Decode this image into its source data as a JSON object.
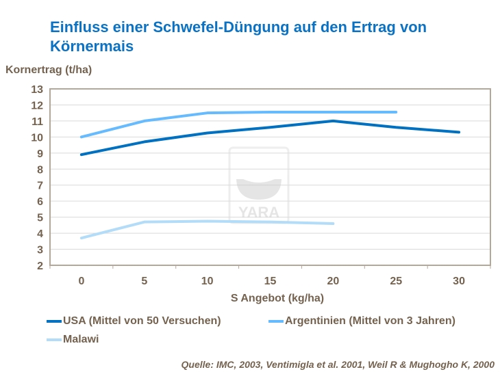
{
  "chart_data": {
    "type": "line",
    "title": "Einfluss einer Schwefel-Düngung auf den Ertrag von Körnermais",
    "ylabel": "Kornertrag (t/ha)",
    "xlabel": "S Angebot (kg/ha)",
    "categories": [
      "0",
      "5",
      "10",
      "15",
      "20",
      "25",
      "30"
    ],
    "ylim": [
      2,
      13
    ],
    "yticks": [
      "2",
      "3",
      "4",
      "5",
      "6",
      "7",
      "8",
      "9",
      "10",
      "11",
      "12",
      "13"
    ],
    "grid": true,
    "legend": "bottom",
    "series": [
      {
        "name": "USA (Mittel von 50 Versuchen)",
        "color": "#0070c0",
        "values": [
          8.9,
          9.7,
          10.25,
          10.6,
          11.0,
          10.6,
          10.3
        ]
      },
      {
        "name": "Argentinien (Mittel von 3 Jahren)",
        "color": "#66bbff",
        "values": [
          10.0,
          11.0,
          11.5,
          11.55,
          11.55,
          11.55,
          null
        ]
      },
      {
        "name": "Malawi",
        "color": "#b3dcf8",
        "values": [
          3.7,
          4.7,
          4.75,
          4.7,
          4.6,
          null,
          null
        ]
      }
    ],
    "source": "Quelle: IMC, 2003, Ventimigla et al. 2001, Weil R & Mughogho K, 2000",
    "watermark": "YARA"
  }
}
